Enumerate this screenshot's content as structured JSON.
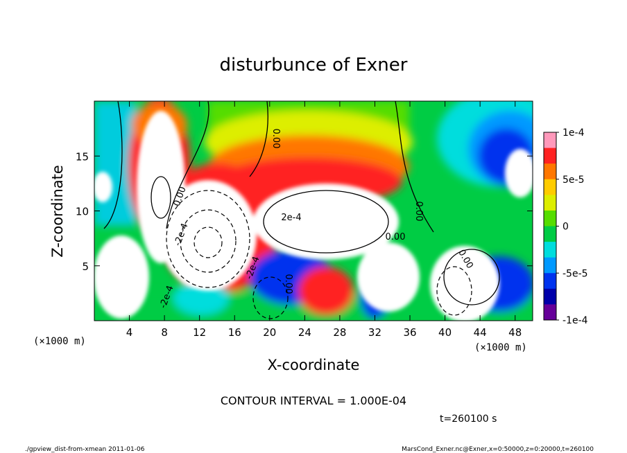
{
  "chart_data": {
    "type": "heatmap",
    "title": "disturbunce of Exner",
    "xlabel": "X-coordinate",
    "ylabel": "Z-coordinate",
    "x_unit": "(×1000 m)",
    "y_unit": "(×1000 m)",
    "xlim": [
      0,
      50
    ],
    "ylim": [
      0,
      20
    ],
    "x_ticks": [
      4,
      8,
      12,
      16,
      20,
      24,
      28,
      32,
      36,
      40,
      44,
      48
    ],
    "y_ticks": [
      5,
      10,
      15
    ],
    "colorbar": {
      "min": -0.0001,
      "max": 0.0001,
      "tick_labels": [
        "1e-4",
        "5e-5",
        "0",
        "-5e-5",
        "-1e-4"
      ],
      "tick_values": [
        0.0001,
        5e-05,
        0,
        -5e-05,
        -0.0001
      ],
      "colors": [
        "#ff99bb",
        "#ff2222",
        "#ff7700",
        "#ffcc00",
        "#ddee00",
        "#55dd00",
        "#00cc44",
        "#00dddd",
        "#0099ff",
        "#0033ee",
        "#0000aa",
        "#660099"
      ]
    },
    "contour_labels": [
      "0.00",
      "0.00",
      "0.00",
      "0.00",
      "-2e-4",
      "-2e-4",
      "2e-4",
      "-2e-4",
      "0.00",
      "0.00"
    ],
    "contour_interval_text": "CONTOUR INTERVAL = 1.000E-04",
    "time_text": "t=260100 s",
    "grid": false,
    "legend": "colorbar-right"
  },
  "footer": {
    "left": "./gpview_dist-from-xmean   2011-01-06",
    "right": "MarsCond_Exner.nc@Exner,x=0:50000,z=0:20000,t=260100"
  }
}
